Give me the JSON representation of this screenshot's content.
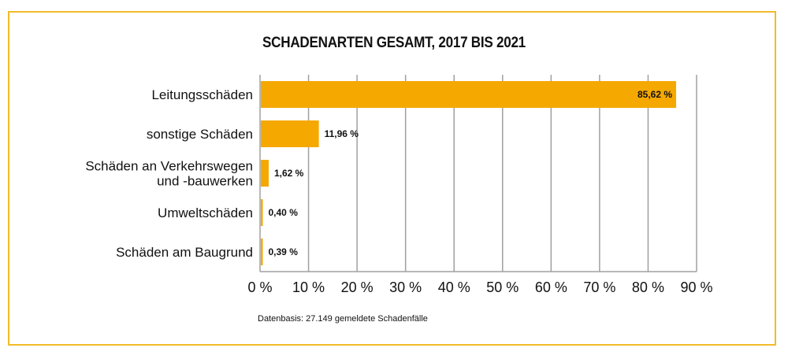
{
  "chart_data": {
    "type": "bar",
    "orientation": "horizontal",
    "title": "SCHADENARTEN GESAMT, 2017 BIS 2021",
    "categories": [
      [
        "Leitungsschäden"
      ],
      [
        "sonstige Schäden"
      ],
      [
        "Schäden an Verkehrswegen",
        "und -bauwerken"
      ],
      [
        "Umweltschäden"
      ],
      [
        "Schäden am Baugrund"
      ]
    ],
    "values": [
      85.62,
      11.96,
      1.62,
      0.4,
      0.39
    ],
    "data_labels": [
      "85,62 %",
      "11,96 %",
      "1,62 %",
      "0,40 %",
      "0,39 %"
    ],
    "xlim": [
      0,
      90
    ],
    "xticks": [
      0,
      10,
      20,
      30,
      40,
      50,
      60,
      70,
      80,
      90
    ],
    "xtick_labels": [
      "0 %",
      "10 %",
      "20 %",
      "30 %",
      "40 %",
      "50 %",
      "60 %",
      "70 %",
      "80 %",
      "90 %"
    ],
    "xlabel": "",
    "ylabel": "",
    "grid": "vertical",
    "legend": "none",
    "bar_color": "#f5a800",
    "grid_color": "#a0a0a0",
    "footnote": "Datenbasis: 27.149 gemeldete Schadenfälle"
  },
  "frame_color": "#f3bb2a"
}
